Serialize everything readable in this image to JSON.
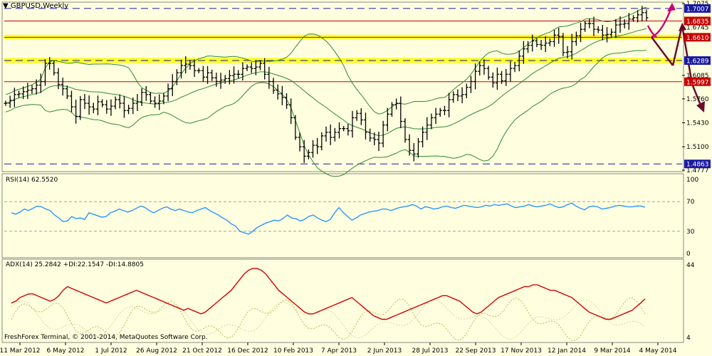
{
  "header": {
    "arrow": "▼",
    "symbol": "GBPUSD,Weekly"
  },
  "copyright": "FreshForex Terminal, © 2001-2014, MetaQuotes Software Corp.",
  "colors": {
    "background": "#ffffe0",
    "bars": "#000000",
    "bollinger": "#2e8b2e",
    "dashed_levels": "#1a1aa0",
    "red_levels": "#c80000",
    "zone_highlight": "#ffff00",
    "rsi_line": "#1e90ff",
    "adx_line": "#d40000",
    "plus_di": "#b8b84a",
    "minus_di": "#d8d0a0",
    "arrows_up": "#cc0077",
    "arrows_down": "#6b0a2a"
  },
  "chart_data": [
    {
      "type": "ohlc",
      "symbol": "GBPUSD",
      "timeframe": "Weekly",
      "ylim": [
        1.4777,
        1.7075
      ],
      "y_ticks": [
        "1.7075",
        "1.6745",
        "1.6085",
        "1.5760",
        "1.5430",
        "1.5100",
        "1.4777"
      ],
      "x_labels": [
        "11 Mar 2012",
        "6 May 2012",
        "1 Jul 2012",
        "26 Aug 2012",
        "21 Oct 2012",
        "16 Dec 2012",
        "10 Feb 2013",
        "7 Apr 2013",
        "2 Jun 2013",
        "28 Jul 2013",
        "22 Sep 2013",
        "17 Nov 2013",
        "12 Jan 2014",
        "9 Mar 2014",
        "4 May 2014"
      ],
      "close": [
        1.57,
        1.574,
        1.582,
        1.583,
        1.586,
        1.588,
        1.59,
        1.595,
        1.6,
        1.625,
        1.625,
        1.612,
        1.596,
        1.59,
        1.58,
        1.565,
        1.552,
        1.575,
        1.57,
        1.565,
        1.562,
        1.572,
        1.568,
        1.562,
        1.566,
        1.575,
        1.57,
        1.56,
        1.563,
        1.57,
        1.572,
        1.585,
        1.582,
        1.573,
        1.57,
        1.573,
        1.58,
        1.59,
        1.6,
        1.612,
        1.622,
        1.624,
        1.622,
        1.615,
        1.615,
        1.606,
        1.612,
        1.605,
        1.6,
        1.602,
        1.604,
        1.608,
        1.61,
        1.61,
        1.618,
        1.62,
        1.618,
        1.62,
        1.625,
        1.61,
        1.6,
        1.588,
        1.583,
        1.578,
        1.568,
        1.55,
        1.523,
        1.51,
        1.497,
        1.502,
        1.512,
        1.51,
        1.525,
        1.53,
        1.523,
        1.53,
        1.535,
        1.535,
        1.532,
        1.55,
        1.556,
        1.547,
        1.53,
        1.522,
        1.52,
        1.515,
        1.54,
        1.555,
        1.568,
        1.57,
        1.545,
        1.52,
        1.505,
        1.5,
        1.517,
        1.53,
        1.54,
        1.55,
        1.555,
        1.56,
        1.56,
        1.575,
        1.582,
        1.58,
        1.582,
        1.592,
        1.6,
        1.614,
        1.622,
        1.618,
        1.606,
        1.598,
        1.61,
        1.601,
        1.61,
        1.618,
        1.622,
        1.635,
        1.645,
        1.65,
        1.656,
        1.651,
        1.65,
        1.653,
        1.655,
        1.664,
        1.662,
        1.64,
        1.641,
        1.655,
        1.663,
        1.672,
        1.68,
        1.68,
        1.672,
        1.671,
        1.664,
        1.665,
        1.668,
        1.678,
        1.679,
        1.68,
        1.686,
        1.688,
        1.692,
        1.695,
        1.688
      ],
      "reference_lines": [
        {
          "label": "1.7007",
          "style": "dashed",
          "color": "#1a1aa0"
        },
        {
          "label": "1.6835",
          "style": "solid",
          "color": "#c80000"
        },
        {
          "label": "1.6610",
          "style": "solid",
          "color": "#c80000"
        },
        {
          "label": "1.6289",
          "style": "dashed",
          "color": "#1a1aa0"
        },
        {
          "label": "1.5997",
          "style": "solid",
          "color": "#c80000"
        },
        {
          "label": "1.4863",
          "style": "dashed",
          "color": "#1a1aa0"
        }
      ],
      "highlight_zones": [
        {
          "from": 1.6585,
          "to": 1.6645,
          "color": "#ffff00"
        },
        {
          "from": 1.6255,
          "to": 1.6325,
          "color": "#ffff00"
        }
      ],
      "overlays": [
        "Bollinger Bands (upper, middle, lower)"
      ]
    },
    {
      "type": "line",
      "name": "RSI(14)",
      "current_value": "62.5520",
      "ylim": [
        0,
        100
      ],
      "y_ticks": [
        "100",
        "70",
        "30",
        "0"
      ],
      "levels": [
        70,
        30
      ],
      "values": [
        55,
        53,
        56,
        60,
        58,
        61,
        64,
        63,
        60,
        58,
        52,
        48,
        43,
        44,
        50,
        47,
        48,
        46,
        55,
        53,
        51,
        49,
        50,
        55,
        57,
        60,
        58,
        56,
        58,
        61,
        64,
        62,
        58,
        55,
        58,
        61,
        63,
        60,
        58,
        60,
        58,
        56,
        55,
        58,
        60,
        62,
        58,
        55,
        52,
        48,
        45,
        40,
        37,
        30,
        28,
        26,
        30,
        35,
        38,
        41,
        43,
        45,
        44,
        47,
        52,
        48,
        47,
        44,
        46,
        50,
        52,
        48,
        45,
        43,
        46,
        55,
        62,
        55,
        50,
        45,
        48,
        52,
        54,
        56,
        57,
        58,
        60,
        60,
        58,
        60,
        62,
        63,
        64,
        66,
        64,
        60,
        63,
        62,
        60,
        61,
        63,
        64,
        62,
        61,
        63,
        65,
        64,
        63,
        62,
        63,
        65,
        64,
        66,
        65,
        66,
        67,
        64,
        62,
        63,
        64,
        66,
        64,
        63,
        64,
        65,
        67,
        64,
        62,
        63,
        66,
        68,
        64,
        61,
        59,
        63,
        64,
        63,
        60,
        61,
        62,
        64,
        65,
        64,
        63,
        63,
        64,
        64,
        62.55
      ]
    },
    {
      "type": "line",
      "name": "ADX(14)",
      "header": "ADX(14) 25.2842 +DI:22.1547 -DI:14.8805",
      "ylim": [
        4,
        44
      ],
      "y_ticks": [
        "44",
        "4"
      ],
      "series": [
        {
          "name": "ADX(14)",
          "values": [
            23,
            24,
            26,
            27,
            28,
            28,
            27,
            26,
            25,
            24,
            25,
            27,
            30,
            32,
            31,
            30,
            29,
            28,
            27,
            26,
            25,
            24,
            23,
            24,
            25,
            26,
            27,
            28,
            29,
            30,
            29,
            28,
            27,
            26,
            25,
            24,
            23,
            22,
            21,
            20,
            19,
            20,
            19,
            18,
            17,
            18,
            20,
            22,
            24,
            26,
            28,
            30,
            33,
            36,
            39,
            41,
            42,
            42,
            41,
            39,
            36,
            33,
            30,
            28,
            26,
            24,
            22,
            20,
            18,
            17,
            17,
            18,
            19,
            20,
            21,
            22,
            23,
            24,
            25,
            26,
            24,
            22,
            20,
            18,
            16,
            15,
            14,
            14,
            15,
            16,
            17,
            18,
            19,
            20,
            21,
            22,
            23,
            24,
            25,
            26,
            27,
            27,
            26,
            25,
            24,
            22,
            20,
            18,
            17,
            18,
            20,
            22,
            24,
            26,
            27,
            28,
            29,
            30,
            31,
            32,
            32,
            33,
            33,
            32,
            31,
            30,
            30,
            29,
            28,
            27,
            26,
            24,
            22,
            20,
            18,
            17,
            16,
            15,
            14,
            14,
            15,
            16,
            17,
            18,
            19,
            21,
            23,
            25.28
          ]
        }
      ]
    }
  ]
}
